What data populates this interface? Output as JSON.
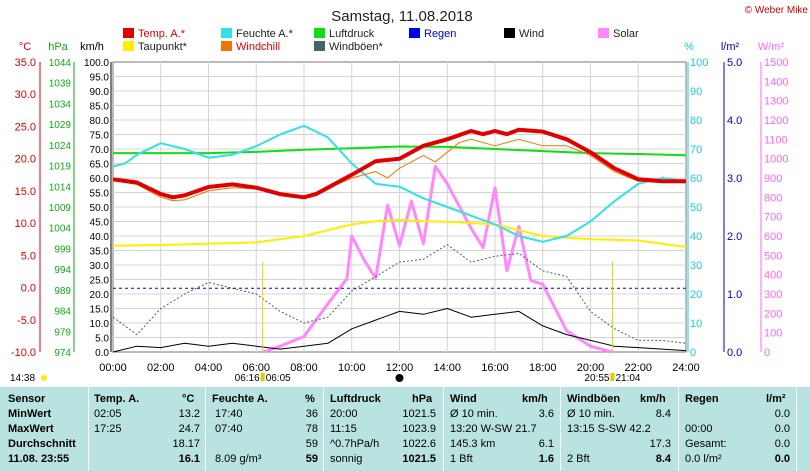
{
  "header": {
    "title": "Samstag, 11.08.2018",
    "copyright": "© Weber Mike"
  },
  "legend": [
    {
      "label": "Temp. A.*",
      "color": "#e00000"
    },
    {
      "label": "Feuchte A.*",
      "color": "#33e0e8"
    },
    {
      "label": "Luftdruck",
      "color": "#11dd11"
    },
    {
      "label": "Regen",
      "color": "#0000ee"
    },
    {
      "label": "Wind",
      "color": "#000000"
    },
    {
      "label": "Solar",
      "color": "#ff88ff"
    },
    {
      "label": "Taupunkt*",
      "color": "#ffee00"
    },
    {
      "label": "Windchill",
      "color": "#ee7700"
    },
    {
      "label": "Windböen*",
      "color": "#446666"
    }
  ],
  "axis_units": {
    "temp": "°C",
    "pressure": "hPa",
    "wind": "km/h",
    "humidity": "%",
    "rain": "l/m²",
    "solar": "W/m²"
  },
  "axis_ticks": {
    "temp": [
      "35.0",
      "30.0",
      "25.0",
      "20.0",
      "15.0",
      "10.0",
      "5.0",
      "0.0",
      "-5.0",
      "-10.0"
    ],
    "pressure": [
      "1044",
      "1039",
      "1034",
      "1029",
      "1024",
      "1019",
      "1014",
      "1009",
      "1004",
      "999",
      "994",
      "989",
      "984",
      "979",
      "974"
    ],
    "wind": [
      "100.0",
      "95.0",
      "90.0",
      "85.0",
      "80.0",
      "75.0",
      "70.0",
      "65.0",
      "60.0",
      "55.0",
      "50.0",
      "45.0",
      "40.0",
      "35.0",
      "30.0",
      "25.0",
      "20.0",
      "15.0",
      "10.0",
      "5.0",
      "0.0"
    ],
    "humidity": [
      "100",
      "90",
      "80",
      "70",
      "60",
      "50",
      "40",
      "30",
      "20",
      "10",
      "0"
    ],
    "rain": [
      "5.0",
      "4.0",
      "3.0",
      "2.0",
      "1.0",
      "0.0"
    ],
    "solar": [
      "1500",
      "1400",
      "1300",
      "1200",
      "1100",
      "1000",
      "900",
      "800",
      "700",
      "600",
      "500",
      "400",
      "300",
      "200",
      "100",
      "0"
    ],
    "x": [
      "00:00",
      "02:00",
      "04:00",
      "06:00",
      "08:00",
      "10:00",
      "12:00",
      "14:00",
      "16:00",
      "18:00",
      "20:00",
      "22:00",
      "24:00"
    ]
  },
  "sun": {
    "sunrise": "06:16",
    "sunrise_b": "06:05",
    "sunset": "20:55",
    "sunset_b": "21:04",
    "left_time": "14:38"
  },
  "chart_data": {
    "type": "line",
    "x_unit": "hour",
    "xlim": [
      0,
      24
    ],
    "series": [
      {
        "name": "Temp. A.*",
        "axis": "temp",
        "color": "#e00000",
        "points": [
          [
            0,
            16.8
          ],
          [
            1,
            16.3
          ],
          [
            2,
            14.5
          ],
          [
            2.5,
            14
          ],
          [
            3,
            14.3
          ],
          [
            4,
            15.6
          ],
          [
            5,
            16
          ],
          [
            6,
            15.5
          ],
          [
            7,
            14.5
          ],
          [
            8,
            14.0
          ],
          [
            8.5,
            14.5
          ],
          [
            9,
            15.5
          ],
          [
            10,
            17.5
          ],
          [
            11,
            19.6
          ],
          [
            12,
            20
          ],
          [
            13,
            22
          ],
          [
            14,
            23
          ],
          [
            15,
            24.3
          ],
          [
            15.5,
            23.8
          ],
          [
            16,
            24.3
          ],
          [
            16.5,
            23.8
          ],
          [
            17,
            24.5
          ],
          [
            18,
            24.2
          ],
          [
            19,
            23
          ],
          [
            20,
            21
          ],
          [
            21,
            18.5
          ],
          [
            22,
            16.8
          ],
          [
            23,
            16.5
          ],
          [
            24,
            16.5
          ]
        ]
      },
      {
        "name": "Windchill",
        "axis": "temp",
        "color": "#ee7700",
        "points": [
          [
            0,
            16.6
          ],
          [
            1,
            16
          ],
          [
            2,
            14
          ],
          [
            2.5,
            13.5
          ],
          [
            3,
            13.6
          ],
          [
            4,
            15.0
          ],
          [
            5,
            15.5
          ],
          [
            6,
            15.3
          ],
          [
            7,
            14.4
          ],
          [
            8,
            14
          ],
          [
            9,
            15.4
          ],
          [
            10,
            17
          ],
          [
            11,
            18
          ],
          [
            11.5,
            17
          ],
          [
            12,
            18.5
          ],
          [
            12.5,
            19.5
          ],
          [
            13,
            20.5
          ],
          [
            13.5,
            19.5
          ],
          [
            14,
            21
          ],
          [
            14.5,
            22.5
          ],
          [
            15,
            23
          ],
          [
            16,
            22
          ],
          [
            17,
            23
          ],
          [
            18,
            22
          ],
          [
            19,
            22
          ],
          [
            20,
            20.5
          ],
          [
            21,
            18
          ],
          [
            22,
            16.5
          ],
          [
            23,
            16.3
          ],
          [
            24,
            16.3
          ]
        ]
      },
      {
        "name": "Taupunkt*",
        "axis": "temp",
        "color": "#ffee00",
        "points": [
          [
            0,
            6.5
          ],
          [
            2,
            6.6
          ],
          [
            4,
            6.8
          ],
          [
            6,
            7.0
          ],
          [
            8,
            8.0
          ],
          [
            10,
            9.8
          ],
          [
            11,
            10.3
          ],
          [
            12,
            10.5
          ],
          [
            13,
            10.3
          ],
          [
            14,
            10.2
          ],
          [
            16,
            9.8
          ],
          [
            18,
            8.0
          ],
          [
            20,
            7.5
          ],
          [
            22,
            7.3
          ],
          [
            24,
            6.3
          ]
        ]
      },
      {
        "name": "Feuchte A.*",
        "axis": "humidity",
        "color": "#33e0e8",
        "points": [
          [
            0,
            64
          ],
          [
            0.5,
            65
          ],
          [
            1,
            68
          ],
          [
            2,
            72
          ],
          [
            3,
            70
          ],
          [
            4,
            67
          ],
          [
            5,
            68
          ],
          [
            6,
            71
          ],
          [
            7,
            75
          ],
          [
            8,
            78
          ],
          [
            9,
            74
          ],
          [
            10,
            65
          ],
          [
            11,
            58
          ],
          [
            12,
            57
          ],
          [
            13,
            53
          ],
          [
            14,
            50
          ],
          [
            15,
            47
          ],
          [
            16,
            44
          ],
          [
            17,
            40
          ],
          [
            18,
            38
          ],
          [
            19,
            40
          ],
          [
            20,
            45
          ],
          [
            21,
            52
          ],
          [
            22,
            58
          ],
          [
            23,
            60
          ],
          [
            24,
            59
          ]
        ]
      },
      {
        "name": "Luftdruck",
        "axis": "pressure",
        "color": "#11dd11",
        "points": [
          [
            0,
            1022
          ],
          [
            2,
            1022
          ],
          [
            4,
            1022
          ],
          [
            6,
            1022.3
          ],
          [
            8,
            1022.8
          ],
          [
            10,
            1023.2
          ],
          [
            12,
            1023.6
          ],
          [
            14,
            1023.5
          ],
          [
            16,
            1023.0
          ],
          [
            18,
            1022.5
          ],
          [
            20,
            1022
          ],
          [
            22,
            1021.8
          ],
          [
            24,
            1021.5
          ]
        ]
      },
      {
        "name": "Regen",
        "axis": "rain",
        "color": "#0000ee",
        "points": [
          [
            0,
            1.1
          ],
          [
            24,
            1.1
          ]
        ]
      },
      {
        "name": "Wind",
        "axis": "wind",
        "color": "#000000",
        "points": [
          [
            0,
            0
          ],
          [
            1,
            2
          ],
          [
            2,
            1.5
          ],
          [
            3,
            3
          ],
          [
            4,
            2
          ],
          [
            5,
            3
          ],
          [
            6,
            2
          ],
          [
            7,
            1
          ],
          [
            8,
            2
          ],
          [
            9,
            3
          ],
          [
            10,
            8
          ],
          [
            11,
            11
          ],
          [
            12,
            14
          ],
          [
            13,
            13
          ],
          [
            14,
            15
          ],
          [
            15,
            12
          ],
          [
            16,
            13
          ],
          [
            17,
            14
          ],
          [
            18,
            9
          ],
          [
            19,
            6
          ],
          [
            20,
            4
          ],
          [
            21,
            2
          ],
          [
            22,
            1.5
          ],
          [
            23,
            1
          ],
          [
            24,
            0.5
          ]
        ]
      },
      {
        "name": "Windböen*",
        "axis": "wind",
        "color": "#446666",
        "points": [
          [
            0,
            12
          ],
          [
            1,
            6
          ],
          [
            2,
            15
          ],
          [
            3,
            20
          ],
          [
            4,
            24
          ],
          [
            5,
            22
          ],
          [
            6,
            20
          ],
          [
            7,
            14
          ],
          [
            8,
            10
          ],
          [
            9,
            12
          ],
          [
            10,
            21
          ],
          [
            11,
            26
          ],
          [
            12,
            31
          ],
          [
            13,
            32
          ],
          [
            14,
            37
          ],
          [
            15,
            31
          ],
          [
            16,
            33
          ],
          [
            17,
            34
          ],
          [
            18,
            28
          ],
          [
            19,
            26
          ],
          [
            20,
            14
          ],
          [
            21,
            8
          ],
          [
            22,
            4
          ],
          [
            23,
            4
          ],
          [
            24,
            3
          ]
        ]
      },
      {
        "name": "Solar",
        "axis": "solar",
        "color": "#ff88ff",
        "points": [
          [
            6.3,
            0
          ],
          [
            7,
            30
          ],
          [
            8,
            80
          ],
          [
            9,
            250
          ],
          [
            9.8,
            380
          ],
          [
            10,
            600
          ],
          [
            10.5,
            480
          ],
          [
            11,
            380
          ],
          [
            11.5,
            760
          ],
          [
            12,
            550
          ],
          [
            12.5,
            780
          ],
          [
            13,
            560
          ],
          [
            13.5,
            960
          ],
          [
            14,
            870
          ],
          [
            15,
            640
          ],
          [
            15.5,
            540
          ],
          [
            16,
            850
          ],
          [
            16.5,
            420
          ],
          [
            17,
            650
          ],
          [
            17.5,
            370
          ],
          [
            18,
            350
          ],
          [
            19,
            110
          ],
          [
            20,
            30
          ],
          [
            20.9,
            0
          ]
        ]
      }
    ]
  },
  "table": {
    "headers": {
      "sensor": "Sensor",
      "temp": "Temp. A.",
      "temp_unit": "°C",
      "hum": "Feuchte A.",
      "hum_unit": "%",
      "press": "Luftdruck",
      "press_unit": "hPa",
      "wind": "Wind",
      "wind_unit": "km/h",
      "gust": "Windböen",
      "gust_unit": "km/h",
      "rain": "Regen",
      "rain_unit": "l/m²"
    },
    "rows": [
      {
        "label": "MinWert",
        "t_time": "02:05",
        "t_val": "13.2",
        "h_time": "17:40",
        "h_val": "36",
        "p_time": "20:00",
        "p_val": "1021.5",
        "w_a": "Ø 10 min.",
        "w_b": "3.6",
        "g_a": "Ø 10 min.",
        "g_b": "8.4",
        "r_a": "",
        "r_b": "0.0"
      },
      {
        "label": "MaxWert",
        "t_time": "17:25",
        "t_val": "24.7",
        "h_time": "07:40",
        "h_val": "78",
        "p_time": "11:15",
        "p_val": "1023.9",
        "w_a": "13:20   W-SW 21.7",
        "w_b": "",
        "g_a": "13:15   S-SW 42.2",
        "g_b": "",
        "r_a": "00:00",
        "r_b": "0.0"
      },
      {
        "label": "Durchschnitt",
        "t_time": "",
        "t_val": "18.17",
        "h_time": "",
        "h_val": "59",
        "p_time": "^0.7hPa/h",
        "p_val": "1022.6",
        "w_a": "145.3 km",
        "w_b": "6.1",
        "g_a": "",
        "g_b": "17.3",
        "r_a": "Gesamt:",
        "r_b": "0.0"
      },
      {
        "label": "11.08. 23:55",
        "t_time": "",
        "t_val": "16.1",
        "h_time": "8.09 g/m³",
        "h_val": "59",
        "p_time": "sonnig",
        "p_val": "1021.5",
        "w_a": "1 Bft",
        "w_b": "1.6",
        "g_a": "2 Bft",
        "g_b": "8.4",
        "r_a": "0.0 l/m²",
        "r_b": "0.0"
      }
    ]
  }
}
